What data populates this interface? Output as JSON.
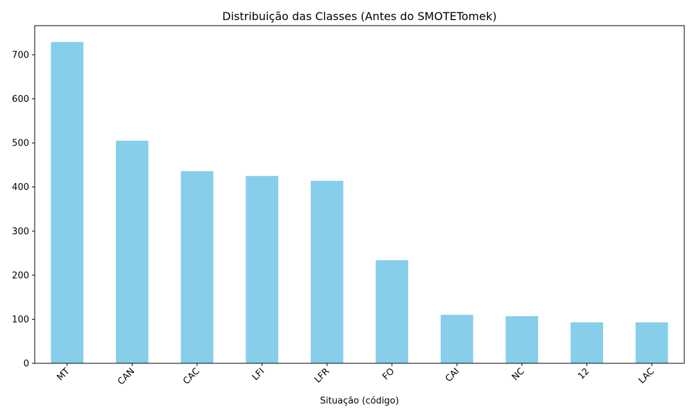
{
  "chart_data": {
    "type": "bar",
    "title": "Distribuição das Classes (Antes do SMOTETomek)",
    "xlabel": "Situação (código)",
    "ylabel": "",
    "categories": [
      "MT",
      "CAN",
      "CAC",
      "LFI",
      "LFR",
      "FO",
      "CAI",
      "NC",
      "12",
      "LAC"
    ],
    "values": [
      729,
      505,
      436,
      425,
      414,
      234,
      110,
      107,
      93,
      93
    ],
    "ylim": [
      0,
      766
    ],
    "yticks": [
      0,
      100,
      200,
      300,
      400,
      500,
      600,
      700
    ],
    "bar_color": "#87ceeb",
    "grid": false,
    "legend": "none"
  }
}
